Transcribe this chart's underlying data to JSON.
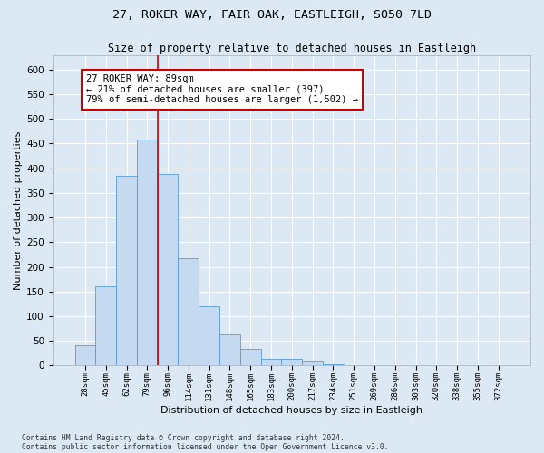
{
  "title_line1": "27, ROKER WAY, FAIR OAK, EASTLEIGH, SO50 7LD",
  "title_line2": "Size of property relative to detached houses in Eastleigh",
  "xlabel": "Distribution of detached houses by size in Eastleigh",
  "ylabel": "Number of detached properties",
  "footnote1": "Contains HM Land Registry data © Crown copyright and database right 2024.",
  "footnote2": "Contains public sector information licensed under the Open Government Licence v3.0.",
  "bin_labels": [
    "28sqm",
    "45sqm",
    "62sqm",
    "79sqm",
    "96sqm",
    "114sqm",
    "131sqm",
    "148sqm",
    "165sqm",
    "183sqm",
    "200sqm",
    "217sqm",
    "234sqm",
    "251sqm",
    "269sqm",
    "286sqm",
    "303sqm",
    "320sqm",
    "338sqm",
    "355sqm",
    "372sqm"
  ],
  "bar_values": [
    42,
    160,
    385,
    458,
    388,
    217,
    120,
    63,
    33,
    14,
    14,
    8,
    3,
    1,
    1,
    0,
    0,
    0,
    0,
    0,
    0
  ],
  "bar_color": "#c5d9f0",
  "bar_edge_color": "#5a9bd5",
  "annotation_text": "27 ROKER WAY: 89sqm\n← 21% of detached houses are smaller (397)\n79% of semi-detached houses are larger (1,502) →",
  "annotation_box_color": "#ffffff",
  "annotation_box_edge": "#cc0000",
  "vline_color": "#cc0000",
  "vline_pos": 3.5,
  "ylim": [
    0,
    630
  ],
  "yticks": [
    0,
    50,
    100,
    150,
    200,
    250,
    300,
    350,
    400,
    450,
    500,
    550,
    600
  ],
  "background_color": "#dce9f5",
  "grid_color": "#ffffff"
}
